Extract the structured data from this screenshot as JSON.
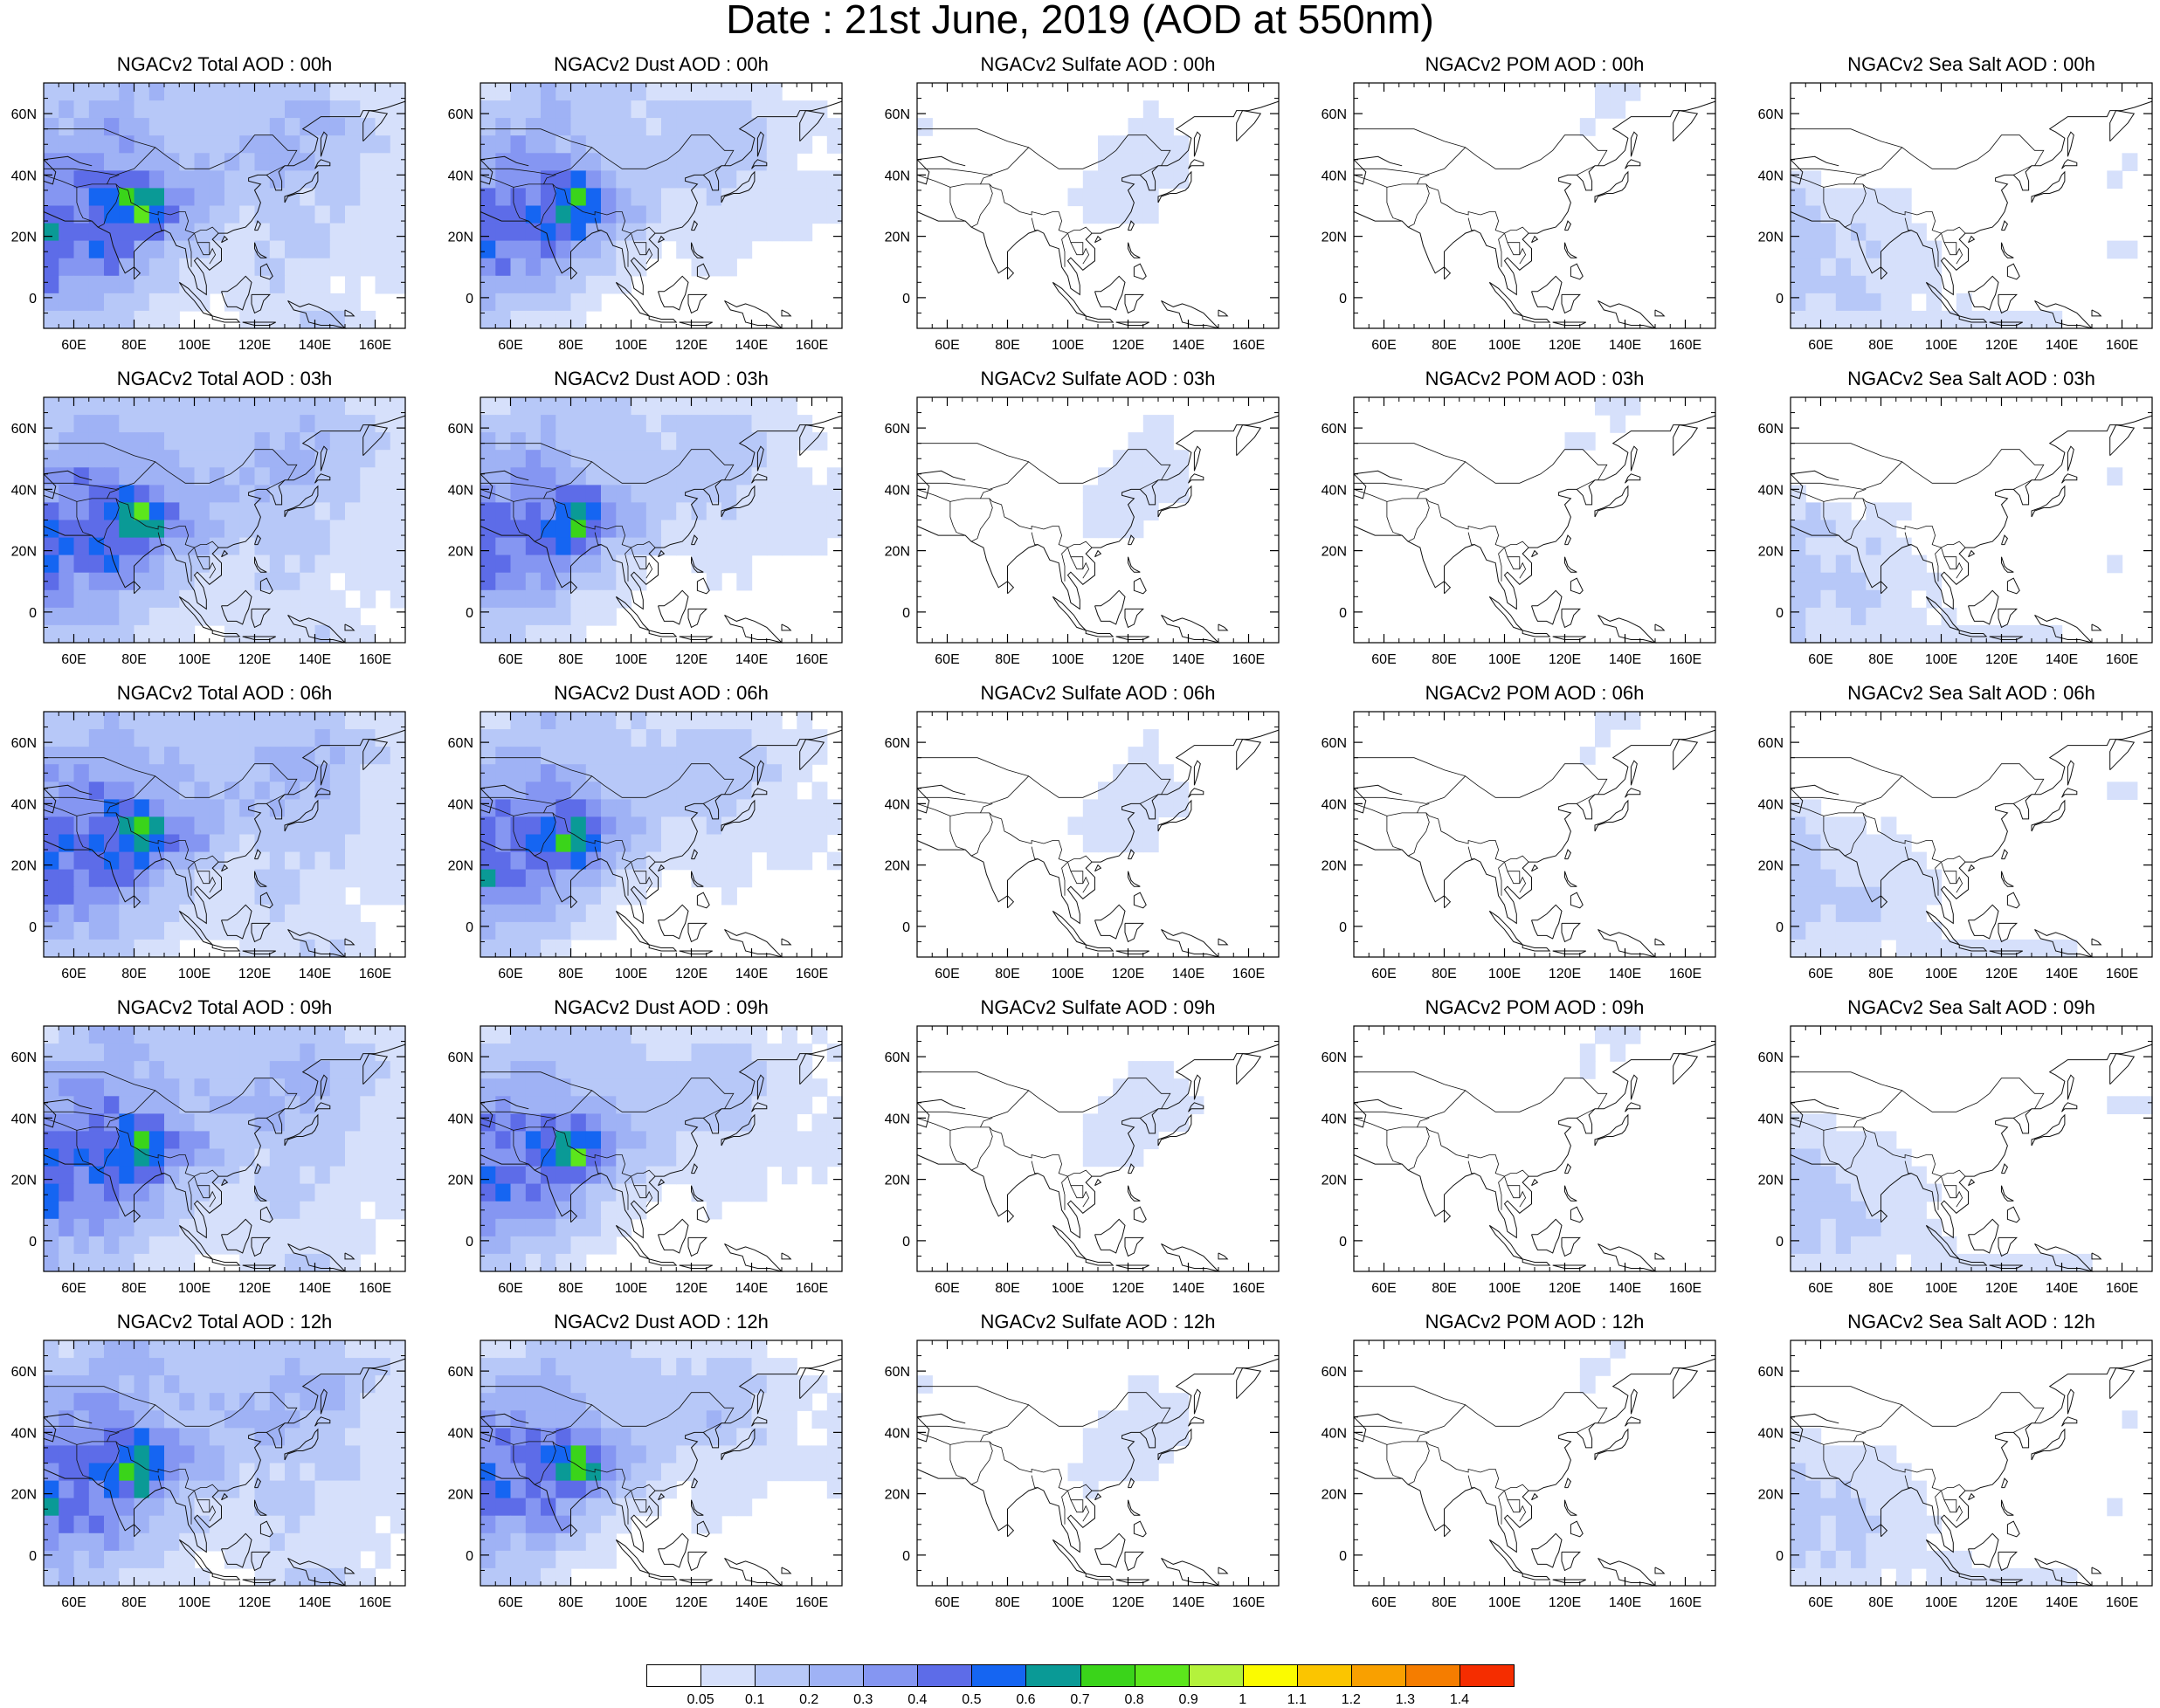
{
  "title": "Date : 21st June, 2019 (AOD at 550nm)",
  "map": {
    "lon_range": [
      50,
      170
    ],
    "lat_range": [
      -10,
      70
    ],
    "x_ticks": [
      "60E",
      "80E",
      "100E",
      "120E",
      "140E",
      "160E"
    ],
    "x_tick_values": [
      60,
      80,
      100,
      120,
      140,
      160
    ],
    "y_ticks": [
      "0",
      "20N",
      "40N",
      "60N"
    ],
    "y_tick_values": [
      0,
      20,
      40,
      60
    ]
  },
  "columns": [
    {
      "field": "total",
      "titles": [
        "NGACv2 Total AOD : 00h",
        "NGACv2 Total AOD : 03h",
        "NGACv2 Total AOD : 06h",
        "NGACv2 Total AOD : 09h",
        "NGACv2 Total AOD  : 12h"
      ]
    },
    {
      "field": "dust",
      "titles": [
        "NGACv2 Dust AOD : 00h",
        "NGACv2 Dust AOD : 03h",
        "NGACv2 Dust AOD : 06h",
        "NGACv2 Dust AOD : 09h",
        "NGACv2 Dust AOD : 12h"
      ]
    },
    {
      "field": "sulfate",
      "titles": [
        "NGACv2 Sulfate AOD : 00h",
        "NGACv2 Sulfate AOD : 03h",
        "NGACv2 Sulfate AOD : 06h",
        "NGACv2 Sulfate AOD : 09h",
        "NGACv2 Sulfate AOD : 12h"
      ]
    },
    {
      "field": "pom",
      "titles": [
        "NGACv2 POM AOD : 00h",
        "NGACv2 POM AOD : 03h",
        "NGACv2 POM AOD : 06h",
        "NGACv2 POM AOD : 09h",
        "NGACv2 POM  AOD : 12h"
      ]
    },
    {
      "field": "seasalt",
      "titles": [
        "NGACv2 Sea Salt AOD : 00h",
        "NGACv2 Sea Salt AOD : 03h",
        "NGACv2 Sea Salt AOD : 06h",
        "NGACv2 Sea Salt  AOD : 09h",
        "NGACv2 Sea Salt  AOD : 12h"
      ]
    }
  ],
  "colorbar": {
    "labels": [
      "0.05",
      "0.1",
      "0.2",
      "0.3",
      "0.4",
      "0.5",
      "0.6",
      "0.7",
      "0.8",
      "0.9",
      "1",
      "1.1",
      "1.2",
      "1.3",
      "1.4"
    ],
    "colors": [
      "#ffffff",
      "#d6e0fb",
      "#b7c8f8",
      "#9fb2f5",
      "#8596f2",
      "#5d6ce8",
      "#1565f2",
      "#0a9a96",
      "#3ad41a",
      "#5ce61c",
      "#b4f23c",
      "#fbfb00",
      "#fbc500",
      "#f9a000",
      "#f57d00",
      "#f52d00"
    ]
  },
  "fields": {
    "total": [
      [
        0.07,
        0.09,
        0.22,
        0.2,
        0.16,
        0.14,
        0.12,
        0.12,
        0.15,
        0.07,
        0.06,
        0.05
      ],
      [
        0.2,
        0.24,
        0.25,
        0.2,
        0.18,
        0.16,
        0.15,
        0.2,
        0.25,
        0.2,
        0.12,
        0.07
      ],
      [
        0.3,
        0.35,
        0.35,
        0.28,
        0.22,
        0.17,
        0.22,
        0.25,
        0.2,
        0.15,
        0.07,
        0.07
      ],
      [
        0.48,
        0.42,
        0.55,
        0.85,
        0.4,
        0.28,
        0.1,
        0.13,
        0.1,
        0.12,
        0.07,
        0.07
      ],
      [
        0.58,
        0.42,
        0.45,
        0.32,
        0.15,
        0.1,
        0.06,
        0.13,
        0.12,
        0.07,
        0.07,
        0.06
      ],
      [
        0.35,
        0.25,
        0.28,
        0.15,
        0.1,
        0.05,
        0.08,
        0.1,
        0.06,
        0.05,
        0.05,
        0.05
      ],
      [
        0.15,
        0.15,
        0.1,
        0.06,
        0.05,
        0.04,
        0.04,
        0.06,
        0.13,
        0.12,
        0.04,
        0.04
      ]
    ],
    "dust": [
      [
        0.05,
        0.07,
        0.18,
        0.15,
        0.12,
        0.08,
        0.06,
        0.06,
        0.06,
        0.04,
        0.04,
        0.04
      ],
      [
        0.17,
        0.2,
        0.22,
        0.17,
        0.15,
        0.12,
        0.12,
        0.15,
        0.15,
        0.08,
        0.06,
        0.04
      ],
      [
        0.28,
        0.32,
        0.33,
        0.25,
        0.18,
        0.12,
        0.15,
        0.18,
        0.12,
        0.08,
        0.04,
        0.06
      ],
      [
        0.45,
        0.4,
        0.52,
        0.82,
        0.35,
        0.2,
        0.06,
        0.08,
        0.06,
        0.08,
        0.07,
        0.06
      ],
      [
        0.55,
        0.4,
        0.42,
        0.28,
        0.1,
        0.06,
        0.04,
        0.08,
        0.06,
        0.04,
        0.04,
        0.04
      ],
      [
        0.3,
        0.2,
        0.22,
        0.1,
        0.06,
        0.03,
        0.03,
        0.04,
        0.03,
        0.03,
        0.03,
        0.03
      ],
      [
        0.1,
        0.08,
        0.06,
        0.04,
        0.03,
        0.02,
        0.02,
        0.02,
        0.02,
        0.02,
        0.02,
        0.02
      ]
    ],
    "sulfate": [
      [
        0.02,
        0.02,
        0.02,
        0.02,
        0.02,
        0.02,
        0.02,
        0.02,
        0.03,
        0.02,
        0.02,
        0.02
      ],
      [
        0.06,
        0.02,
        0.02,
        0.02,
        0.02,
        0.02,
        0.03,
        0.07,
        0.04,
        0.02,
        0.02,
        0.02
      ],
      [
        0.02,
        0.02,
        0.02,
        0.02,
        0.02,
        0.04,
        0.07,
        0.08,
        0.07,
        0.02,
        0.02,
        0.02
      ],
      [
        0.02,
        0.02,
        0.02,
        0.02,
        0.03,
        0.06,
        0.08,
        0.06,
        0.03,
        0.02,
        0.02,
        0.02
      ],
      [
        0.02,
        0.02,
        0.02,
        0.02,
        0.02,
        0.03,
        0.03,
        0.02,
        0.02,
        0.02,
        0.02,
        0.02
      ],
      [
        0.02,
        0.02,
        0.02,
        0.02,
        0.02,
        0.02,
        0.02,
        0.02,
        0.02,
        0.02,
        0.02,
        0.02
      ],
      [
        0.02,
        0.02,
        0.02,
        0.02,
        0.02,
        0.02,
        0.02,
        0.02,
        0.02,
        0.02,
        0.02,
        0.02
      ]
    ],
    "pom": [
      [
        0.02,
        0.02,
        0.02,
        0.02,
        0.02,
        0.02,
        0.02,
        0.03,
        0.09,
        0.02,
        0.02,
        0.02
      ],
      [
        0.02,
        0.02,
        0.02,
        0.02,
        0.02,
        0.02,
        0.02,
        0.06,
        0.03,
        0.02,
        0.02,
        0.02
      ],
      [
        0.02,
        0.02,
        0.02,
        0.02,
        0.02,
        0.02,
        0.02,
        0.02,
        0.02,
        0.02,
        0.02,
        0.02
      ],
      [
        0.02,
        0.02,
        0.02,
        0.02,
        0.02,
        0.02,
        0.02,
        0.02,
        0.02,
        0.02,
        0.02,
        0.02
      ],
      [
        0.02,
        0.02,
        0.02,
        0.02,
        0.02,
        0.02,
        0.02,
        0.02,
        0.02,
        0.02,
        0.02,
        0.02
      ],
      [
        0.02,
        0.02,
        0.02,
        0.02,
        0.02,
        0.02,
        0.02,
        0.02,
        0.02,
        0.02,
        0.02,
        0.02
      ],
      [
        0.02,
        0.02,
        0.02,
        0.02,
        0.02,
        0.02,
        0.02,
        0.02,
        0.02,
        0.02,
        0.02,
        0.02
      ]
    ],
    "seasalt": [
      [
        0.02,
        0.02,
        0.02,
        0.02,
        0.02,
        0.02,
        0.02,
        0.02,
        0.02,
        0.02,
        0.02,
        0.02
      ],
      [
        0.02,
        0.02,
        0.02,
        0.02,
        0.02,
        0.02,
        0.02,
        0.02,
        0.02,
        0.02,
        0.02,
        0.02
      ],
      [
        0.03,
        0.02,
        0.02,
        0.02,
        0.02,
        0.02,
        0.02,
        0.02,
        0.02,
        0.02,
        0.06,
        0.04
      ],
      [
        0.12,
        0.1,
        0.06,
        0.08,
        0.03,
        0.02,
        0.02,
        0.03,
        0.02,
        0.02,
        0.02,
        0.02
      ],
      [
        0.14,
        0.11,
        0.1,
        0.09,
        0.06,
        0.03,
        0.02,
        0.02,
        0.02,
        0.02,
        0.06,
        0.02
      ],
      [
        0.15,
        0.1,
        0.12,
        0.08,
        0.06,
        0.04,
        0.02,
        0.02,
        0.02,
        0.02,
        0.02,
        0.02
      ],
      [
        0.08,
        0.06,
        0.08,
        0.05,
        0.06,
        0.07,
        0.08,
        0.08,
        0.07,
        0.05,
        0.03,
        0.02
      ]
    ]
  }
}
